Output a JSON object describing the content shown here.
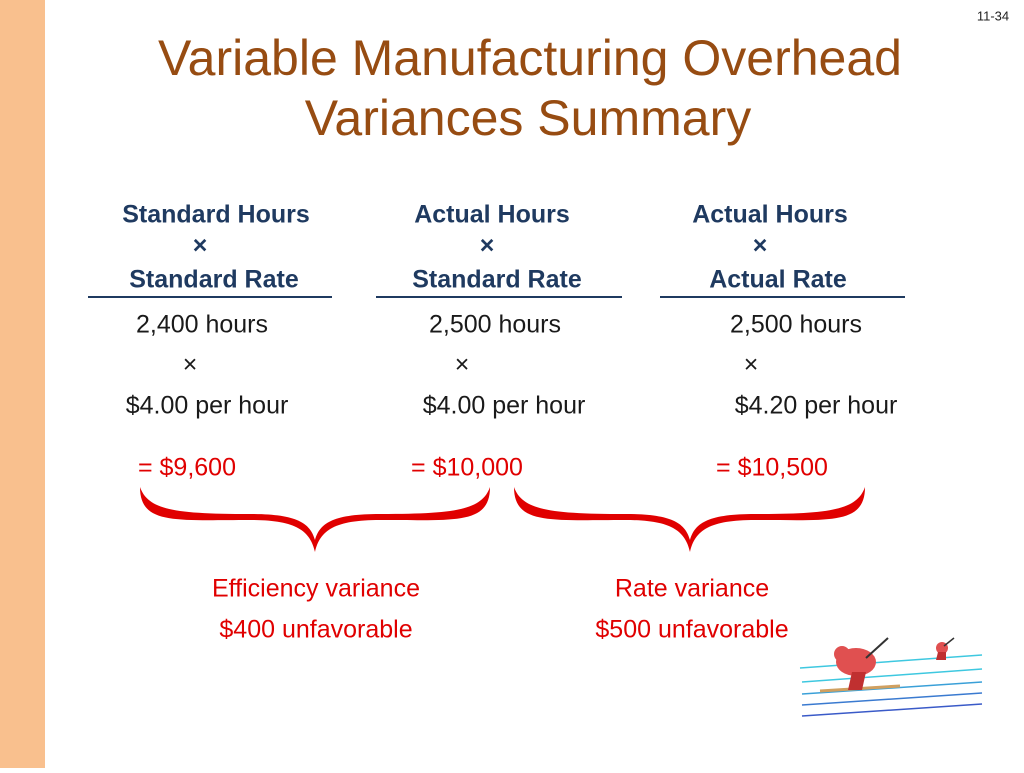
{
  "slide_number": "11-34",
  "title": [
    "Variable Manufacturing Overhead",
    "Variances Summary"
  ],
  "columns": [
    {
      "header_top": "Standard Hours",
      "header_operator": "×",
      "header_bottom": "Standard Rate",
      "hours": "2,400 hours",
      "operator": "×",
      "rate": "$4.00 per hour",
      "total": "= $9,600"
    },
    {
      "header_top": "Actual Hours",
      "header_operator": "×",
      "header_bottom": "Standard Rate",
      "hours": "2,500 hours",
      "operator": "×",
      "rate": "$4.00 per hour",
      "total": "= $10,000"
    },
    {
      "header_top": "Actual Hours",
      "header_operator": "×",
      "header_bottom": "Actual Rate",
      "hours": "2,500 hours",
      "operator": "×",
      "rate": "$4.20 per hour",
      "total": "= $10,500"
    }
  ],
  "variances": [
    {
      "label": "Efficiency variance",
      "amount": "$400 unfavorable"
    },
    {
      "label": "Rate variance",
      "amount": "$500 unfavorable"
    }
  ]
}
